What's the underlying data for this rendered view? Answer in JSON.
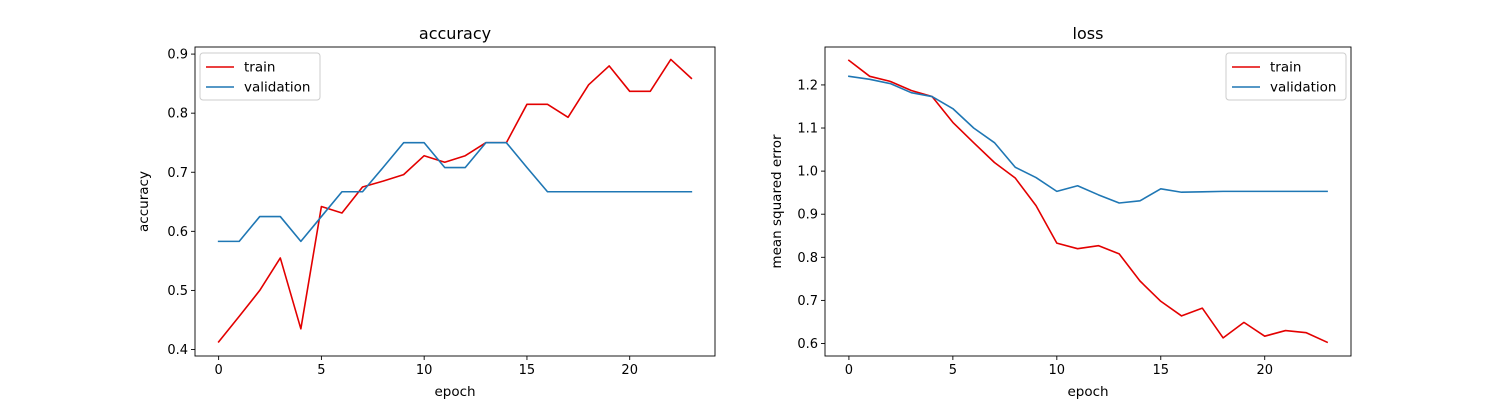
{
  "colors": {
    "train": "#e30000",
    "validation": "#1f77b4",
    "axes": "#000000",
    "legend_border": "#cccccc"
  },
  "chart_data": [
    {
      "type": "line",
      "title": "accuracy",
      "xlabel": "epoch",
      "ylabel": "accuracy",
      "xlim": [
        -1.15,
        24.15
      ],
      "ylim": [
        0.389,
        0.912
      ],
      "xticks": [
        0,
        5,
        10,
        15,
        20
      ],
      "yticks": [
        0.4,
        0.5,
        0.6,
        0.7,
        0.8,
        0.9
      ],
      "ytick_labels": [
        "0.4",
        "0.5",
        "0.6",
        "0.7",
        "0.8",
        "0.9"
      ],
      "grid": false,
      "legend_position": "upper-left",
      "x": [
        0,
        1,
        2,
        3,
        4,
        5,
        6,
        7,
        8,
        9,
        10,
        11,
        12,
        13,
        14,
        15,
        16,
        17,
        18,
        19,
        20,
        21,
        22,
        23
      ],
      "series": [
        {
          "name": "train",
          "color_key": "train",
          "values": [
            0.413,
            0.456,
            0.5,
            0.555,
            0.435,
            0.642,
            0.631,
            0.675,
            0.685,
            0.696,
            0.728,
            0.717,
            0.728,
            0.75,
            0.75,
            0.815,
            0.815,
            0.793,
            0.848,
            0.88,
            0.837,
            0.837,
            0.891,
            0.859
          ]
        },
        {
          "name": "validation",
          "color_key": "validation",
          "values": [
            0.583,
            0.583,
            0.625,
            0.625,
            0.583,
            0.625,
            0.667,
            0.667,
            0.708,
            0.75,
            0.75,
            0.708,
            0.708,
            0.75,
            0.75,
            0.708,
            0.667,
            0.667,
            0.667,
            0.667,
            0.667,
            0.667,
            0.667,
            0.667
          ]
        }
      ]
    },
    {
      "type": "line",
      "title": "loss",
      "xlabel": "epoch",
      "ylabel": "mean squared error",
      "xlim": [
        -1.15,
        24.15
      ],
      "ylim": [
        0.571,
        1.288
      ],
      "xticks": [
        0,
        5,
        10,
        15,
        20
      ],
      "yticks": [
        0.6,
        0.7,
        0.8,
        0.9,
        1.0,
        1.1,
        1.2
      ],
      "ytick_labels": [
        "0.6",
        "0.7",
        "0.8",
        "0.9",
        "1.0",
        "1.1",
        "1.2"
      ],
      "grid": false,
      "legend_position": "upper-right",
      "x": [
        0,
        1,
        2,
        3,
        4,
        5,
        6,
        7,
        8,
        9,
        10,
        11,
        12,
        13,
        14,
        15,
        16,
        17,
        18,
        19,
        20,
        21,
        22,
        23
      ],
      "series": [
        {
          "name": "train",
          "color_key": "train",
          "values": [
            1.257,
            1.22,
            1.208,
            1.187,
            1.173,
            1.113,
            1.066,
            1.02,
            0.984,
            0.92,
            0.833,
            0.82,
            0.827,
            0.808,
            0.745,
            0.698,
            0.664,
            0.682,
            0.613,
            0.649,
            0.617,
            0.63,
            0.625,
            0.603
          ]
        },
        {
          "name": "validation",
          "color_key": "validation",
          "values": [
            1.22,
            1.213,
            1.203,
            1.182,
            1.173,
            1.145,
            1.1,
            1.066,
            1.009,
            0.985,
            0.953,
            0.966,
            0.945,
            0.926,
            0.931,
            0.959,
            0.951,
            0.952,
            0.953,
            0.953,
            0.953,
            0.953,
            0.953,
            0.953
          ]
        }
      ]
    }
  ]
}
